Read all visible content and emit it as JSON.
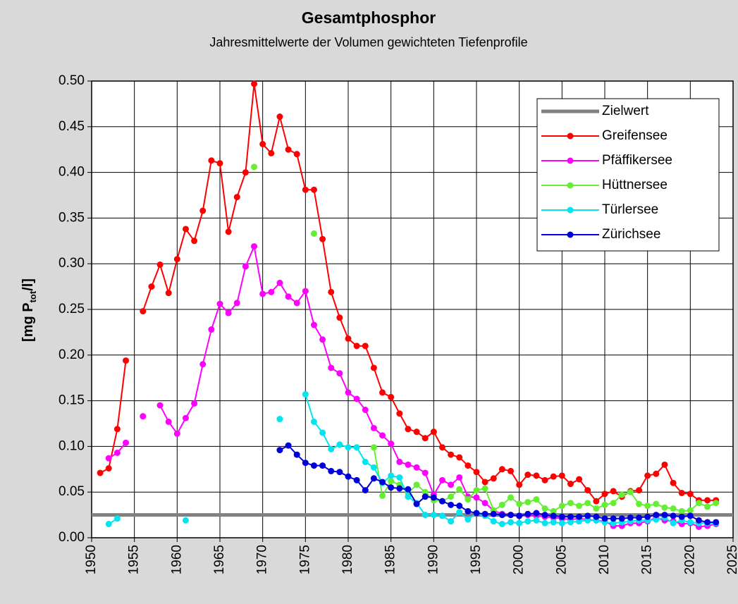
{
  "chart_data": {
    "type": "line",
    "title": "Gesamtphosphor",
    "subtitle": "Jahresmittelwerte der Volumen gewichteten Tiefenprofile",
    "y_label_parts": [
      "[mg P",
      "tot",
      "/l]"
    ],
    "xlim": [
      1950,
      2025
    ],
    "xticks": [
      1950,
      1955,
      1960,
      1965,
      1970,
      1975,
      1980,
      1985,
      1990,
      1995,
      2000,
      2005,
      2010,
      2015,
      2020,
      2025
    ],
    "ylim": [
      0,
      0.5
    ],
    "yticks": [
      {
        "value": 0,
        "label": "0.00"
      },
      {
        "value": 0.05,
        "label": "0.05"
      },
      {
        "value": 0.1,
        "label": "0.10"
      },
      {
        "value": 0.15,
        "label": "0.15"
      },
      {
        "value": 0.2,
        "label": "0.20"
      },
      {
        "value": 0.25,
        "label": "0.25"
      },
      {
        "value": 0.3,
        "label": "0.30"
      },
      {
        "value": 0.35,
        "label": "0.35"
      },
      {
        "value": 0.4,
        "label": "0.40"
      },
      {
        "value": 0.45,
        "label": "0.45"
      },
      {
        "value": 0.5,
        "label": "0.50"
      }
    ],
    "grid": true,
    "legend": "top-right",
    "x": [
      1951,
      1952,
      1953,
      1954,
      1955,
      1956,
      1957,
      1958,
      1959,
      1960,
      1961,
      1962,
      1963,
      1964,
      1965,
      1966,
      1967,
      1968,
      1969,
      1970,
      1971,
      1972,
      1973,
      1974,
      1975,
      1976,
      1977,
      1978,
      1979,
      1980,
      1981,
      1982,
      1983,
      1984,
      1985,
      1986,
      1987,
      1988,
      1989,
      1990,
      1991,
      1992,
      1993,
      1994,
      1995,
      1996,
      1997,
      1998,
      1999,
      2000,
      2001,
      2002,
      2003,
      2004,
      2005,
      2006,
      2007,
      2008,
      2009,
      2010,
      2011,
      2012,
      2013,
      2014,
      2015,
      2016,
      2017,
      2018,
      2019,
      2020,
      2021,
      2022,
      2023
    ],
    "series": [
      {
        "name": "Zielwert",
        "color": "#808080",
        "markers": false,
        "x": [
          1950,
          2025
        ],
        "values": [
          0.025,
          0.025
        ]
      },
      {
        "name": "Greifensee",
        "color": "#ff0000",
        "values": [
          0.071,
          0.076,
          0.119,
          0.194,
          null,
          0.248,
          0.275,
          0.299,
          0.268,
          0.305,
          0.338,
          0.325,
          0.358,
          0.413,
          0.41,
          0.335,
          0.373,
          0.4,
          0.497,
          0.431,
          0.421,
          0.461,
          0.425,
          0.42,
          0.381,
          0.381,
          0.327,
          0.269,
          0.241,
          0.218,
          0.21,
          0.21,
          0.186,
          0.159,
          0.154,
          0.136,
          0.119,
          0.116,
          0.109,
          0.116,
          0.099,
          0.091,
          0.088,
          0.079,
          0.072,
          0.061,
          0.065,
          0.075,
          0.073,
          0.058,
          0.069,
          0.068,
          0.063,
          0.067,
          0.068,
          0.059,
          0.064,
          0.052,
          0.04,
          0.048,
          0.051,
          0.045,
          0.051,
          0.052,
          0.068,
          0.07,
          0.08,
          0.06,
          0.049,
          0.048,
          0.041,
          0.041,
          0.041
        ]
      },
      {
        "name": "Pfäffikersee",
        "color": "#ff00ff",
        "values": [
          null,
          0.087,
          0.093,
          0.104,
          null,
          0.133,
          null,
          0.145,
          0.127,
          0.114,
          0.131,
          0.147,
          0.19,
          0.228,
          0.256,
          0.246,
          0.257,
          0.297,
          0.319,
          0.267,
          0.269,
          0.279,
          0.264,
          0.257,
          0.27,
          0.233,
          0.217,
          0.186,
          0.18,
          0.159,
          0.152,
          0.14,
          0.12,
          0.112,
          0.103,
          0.083,
          0.08,
          0.077,
          0.071,
          0.047,
          0.063,
          0.058,
          0.066,
          0.045,
          0.044,
          0.038,
          0.03,
          0.026,
          0.025,
          0.024,
          0.025,
          0.024,
          0.023,
          0.022,
          0.021,
          0.02,
          0.021,
          0.02,
          0.019,
          0.018,
          0.013,
          0.013,
          0.016,
          0.016,
          0.018,
          0.022,
          0.019,
          0.018,
          0.015,
          0.016,
          0.012,
          0.013,
          0.015
        ]
      },
      {
        "name": "Hüttnersee",
        "color": "#66ee33",
        "values": [
          null,
          null,
          null,
          null,
          null,
          null,
          null,
          null,
          null,
          null,
          null,
          null,
          null,
          null,
          null,
          null,
          null,
          null,
          0.406,
          null,
          null,
          null,
          null,
          null,
          null,
          0.333,
          null,
          null,
          null,
          null,
          null,
          null,
          0.099,
          0.046,
          0.062,
          0.058,
          0.049,
          0.058,
          0.05,
          0.041,
          0.04,
          0.045,
          0.053,
          0.042,
          0.052,
          0.054,
          0.03,
          0.036,
          0.044,
          0.037,
          0.039,
          0.042,
          0.032,
          0.029,
          0.035,
          0.038,
          0.035,
          0.038,
          0.032,
          0.036,
          0.038,
          0.047,
          0.05,
          0.037,
          0.035,
          0.037,
          0.033,
          0.032,
          0.029,
          0.03,
          0.038,
          0.034,
          0.038
        ]
      },
      {
        "name": "Türlersee",
        "color": "#00e5ee",
        "values": [
          null,
          0.015,
          0.021,
          null,
          null,
          null,
          null,
          null,
          null,
          null,
          0.019,
          null,
          null,
          null,
          null,
          null,
          null,
          null,
          null,
          null,
          null,
          0.13,
          null,
          null,
          0.157,
          0.127,
          0.115,
          0.097,
          0.102,
          0.099,
          0.099,
          0.083,
          0.077,
          0.06,
          0.068,
          0.066,
          0.045,
          0.038,
          0.025,
          0.025,
          0.024,
          0.018,
          0.028,
          0.02,
          0.027,
          0.024,
          0.018,
          0.015,
          0.017,
          0.016,
          0.018,
          0.019,
          0.016,
          0.017,
          0.016,
          0.017,
          0.018,
          0.019,
          0.019,
          0.017,
          0.016,
          0.017,
          0.018,
          0.019,
          0.019,
          0.02,
          0.022,
          0.016,
          0.019,
          0.017,
          0.016,
          0.016,
          0.016
        ]
      },
      {
        "name": "Zürichsee",
        "color": "#0000dd",
        "values": [
          null,
          null,
          null,
          null,
          null,
          null,
          null,
          null,
          null,
          null,
          null,
          null,
          null,
          null,
          null,
          null,
          null,
          null,
          null,
          null,
          null,
          0.096,
          0.101,
          0.091,
          0.082,
          0.079,
          0.079,
          0.073,
          0.072,
          0.067,
          0.063,
          0.052,
          0.065,
          0.061,
          0.055,
          0.054,
          0.053,
          0.037,
          0.045,
          0.044,
          0.04,
          0.036,
          0.035,
          0.029,
          0.027,
          0.026,
          0.026,
          0.025,
          0.025,
          0.024,
          0.026,
          0.027,
          0.025,
          0.024,
          0.023,
          0.023,
          0.023,
          0.024,
          0.023,
          0.021,
          0.021,
          0.021,
          0.022,
          0.022,
          0.023,
          0.025,
          0.025,
          0.024,
          0.023,
          0.024,
          0.019,
          0.017,
          0.017
        ]
      }
    ]
  }
}
